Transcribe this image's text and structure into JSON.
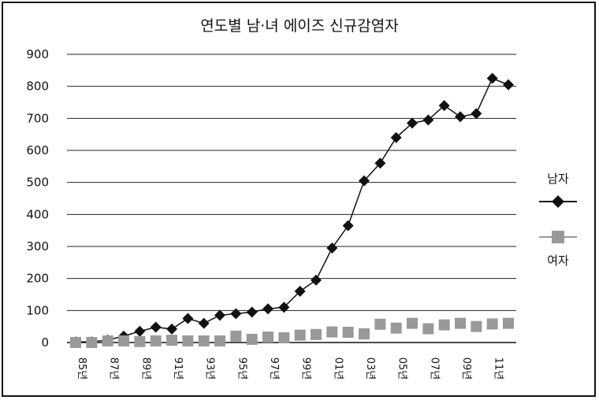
{
  "chart_data": {
    "type": "line",
    "title": "연도별 남·녀 에이즈 신규감염자",
    "xlabel": "",
    "ylabel": "",
    "ylim": [
      0,
      900
    ],
    "yticks": [
      "0",
      "100",
      "200",
      "300",
      "400",
      "500",
      "600",
      "700",
      "800",
      "900"
    ],
    "x": [
      "85",
      "86",
      "87",
      "88",
      "89",
      "90",
      "91",
      "92",
      "93",
      "94",
      "95",
      "96",
      "97",
      "98",
      "99",
      "00",
      "01",
      "02",
      "03",
      "04",
      "05",
      "06",
      "07",
      "08",
      "09",
      "10",
      "11",
      "12"
    ],
    "x_tick_labels": [
      "85년",
      "",
      "87년",
      "",
      "89년",
      "",
      "91년",
      "",
      "93년",
      "",
      "95년",
      "",
      "97년",
      "",
      "99년",
      "",
      "01년",
      "",
      "03년",
      "",
      "05년",
      "",
      "07년",
      "",
      "09년",
      "",
      "11년",
      ""
    ],
    "grid": true,
    "legend_position": "right",
    "series": [
      {
        "name": "남자",
        "color": "#111111",
        "marker": "diamond",
        "values": [
          2,
          2,
          8,
          20,
          35,
          48,
          42,
          75,
          60,
          85,
          90,
          95,
          105,
          110,
          160,
          195,
          295,
          365,
          505,
          560,
          640,
          685,
          695,
          740,
          705,
          715,
          825,
          805
        ]
      },
      {
        "name": "여자",
        "color": "#999999",
        "marker": "square",
        "values": [
          0,
          0,
          5,
          5,
          3,
          5,
          7,
          5,
          5,
          5,
          20,
          10,
          17,
          15,
          23,
          25,
          33,
          32,
          27,
          57,
          45,
          60,
          43,
          55,
          60,
          50,
          58,
          60
        ]
      }
    ]
  }
}
